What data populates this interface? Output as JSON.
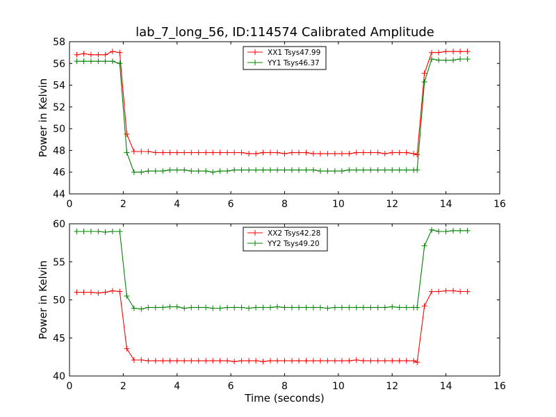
{
  "figure_title": "lab_7_long_56, ID:114574 Calibrated Amplitude",
  "chart_data": [
    {
      "type": "line",
      "title": "lab_7_long_56, ID:114574 Calibrated Amplitude",
      "xlabel": "",
      "ylabel": "Power in Kelvin",
      "xlim": [
        0,
        16
      ],
      "ylim": [
        44,
        58
      ],
      "xticks": [
        "0",
        "2",
        "4",
        "6",
        "8",
        "10",
        "12",
        "14",
        "16"
      ],
      "yticks": [
        "44",
        "46",
        "48",
        "50",
        "52",
        "54",
        "56",
        "58"
      ],
      "grid": false,
      "legend_position": "top-center",
      "x": [
        0.27,
        0.53,
        0.8,
        1.07,
        1.33,
        1.6,
        1.87,
        2.13,
        2.4,
        2.67,
        2.93,
        3.2,
        3.47,
        3.73,
        4.0,
        4.27,
        4.53,
        4.8,
        5.07,
        5.33,
        5.6,
        5.87,
        6.13,
        6.4,
        6.67,
        6.93,
        7.2,
        7.47,
        7.73,
        8.0,
        8.27,
        8.53,
        8.8,
        9.07,
        9.33,
        9.6,
        9.87,
        10.13,
        10.4,
        10.67,
        10.93,
        11.2,
        11.47,
        11.73,
        12.0,
        12.27,
        12.53,
        12.8,
        12.93,
        13.2,
        13.47,
        13.73,
        14.0,
        14.27,
        14.53,
        14.8
      ],
      "series": [
        {
          "name": "XX1 Tsys47.99",
          "color": "#ff0000",
          "values": [
            56.8,
            56.9,
            56.8,
            56.8,
            56.8,
            57.1,
            57.0,
            49.5,
            47.9,
            47.9,
            47.9,
            47.8,
            47.8,
            47.8,
            47.8,
            47.8,
            47.8,
            47.8,
            47.8,
            47.8,
            47.8,
            47.8,
            47.8,
            47.8,
            47.7,
            47.7,
            47.8,
            47.8,
            47.8,
            47.7,
            47.8,
            47.8,
            47.8,
            47.7,
            47.7,
            47.7,
            47.7,
            47.7,
            47.7,
            47.8,
            47.8,
            47.8,
            47.8,
            47.7,
            47.8,
            47.8,
            47.8,
            47.7,
            47.6,
            55.1,
            57.0,
            57.0,
            57.1,
            57.1,
            57.1,
            57.1
          ]
        },
        {
          "name": "YY1 Tsys46.37",
          "color": "#008000",
          "values": [
            56.2,
            56.2,
            56.2,
            56.2,
            56.2,
            56.2,
            56.0,
            47.8,
            46.0,
            46.0,
            46.1,
            46.1,
            46.1,
            46.2,
            46.2,
            46.2,
            46.1,
            46.1,
            46.1,
            46.0,
            46.1,
            46.1,
            46.2,
            46.2,
            46.2,
            46.2,
            46.2,
            46.2,
            46.2,
            46.2,
            46.2,
            46.2,
            46.2,
            46.2,
            46.1,
            46.1,
            46.1,
            46.1,
            46.2,
            46.2,
            46.2,
            46.2,
            46.2,
            46.2,
            46.2,
            46.2,
            46.2,
            46.2,
            46.2,
            54.3,
            56.4,
            56.3,
            56.3,
            56.3,
            56.4,
            56.4
          ]
        }
      ]
    },
    {
      "type": "line",
      "title": "",
      "xlabel": "Time (seconds)",
      "ylabel": "Power in Kelvin",
      "xlim": [
        0,
        16
      ],
      "ylim": [
        40,
        60
      ],
      "xticks": [
        "0",
        "2",
        "4",
        "6",
        "8",
        "10",
        "12",
        "14",
        "16"
      ],
      "yticks": [
        "40",
        "45",
        "50",
        "55",
        "60"
      ],
      "grid": false,
      "legend_position": "top-center",
      "x": [
        0.27,
        0.53,
        0.8,
        1.07,
        1.33,
        1.6,
        1.87,
        2.13,
        2.4,
        2.67,
        2.93,
        3.2,
        3.47,
        3.73,
        4.0,
        4.27,
        4.53,
        4.8,
        5.07,
        5.33,
        5.6,
        5.87,
        6.13,
        6.4,
        6.67,
        6.93,
        7.2,
        7.47,
        7.73,
        8.0,
        8.27,
        8.53,
        8.8,
        9.07,
        9.33,
        9.6,
        9.87,
        10.13,
        10.4,
        10.67,
        10.93,
        11.2,
        11.47,
        11.73,
        12.0,
        12.27,
        12.53,
        12.8,
        12.93,
        13.2,
        13.47,
        13.73,
        14.0,
        14.27,
        14.53,
        14.8
      ],
      "series": [
        {
          "name": "XX2 Tsys42.28",
          "color": "#ff0000",
          "values": [
            51.0,
            51.0,
            51.0,
            50.9,
            51.0,
            51.2,
            51.1,
            43.6,
            42.1,
            42.1,
            42.0,
            42.0,
            42.0,
            42.0,
            42.0,
            42.0,
            42.0,
            42.0,
            42.0,
            42.0,
            42.0,
            42.0,
            41.9,
            42.0,
            42.0,
            42.0,
            41.9,
            42.0,
            42.0,
            42.0,
            42.0,
            42.0,
            42.0,
            42.0,
            42.0,
            42.0,
            42.0,
            42.0,
            42.0,
            42.1,
            42.0,
            42.0,
            42.0,
            42.0,
            42.0,
            42.0,
            42.0,
            42.0,
            41.8,
            49.2,
            51.1,
            51.1,
            51.2,
            51.2,
            51.1,
            51.1
          ]
        },
        {
          "name": "YY2 Tsys49.20",
          "color": "#008000",
          "values": [
            59.0,
            59.0,
            59.0,
            59.0,
            58.9,
            59.0,
            59.0,
            50.5,
            48.9,
            48.8,
            49.0,
            49.0,
            49.0,
            49.1,
            49.1,
            48.9,
            49.0,
            49.0,
            49.0,
            48.9,
            48.9,
            49.0,
            49.0,
            49.0,
            48.9,
            49.0,
            49.0,
            49.0,
            49.1,
            49.0,
            49.0,
            49.0,
            49.0,
            49.0,
            49.0,
            48.9,
            49.0,
            49.0,
            49.0,
            49.0,
            49.0,
            49.0,
            49.0,
            49.0,
            49.1,
            49.0,
            49.0,
            49.0,
            49.0,
            57.1,
            59.2,
            59.0,
            59.0,
            59.1,
            59.1,
            59.1
          ]
        }
      ]
    }
  ]
}
